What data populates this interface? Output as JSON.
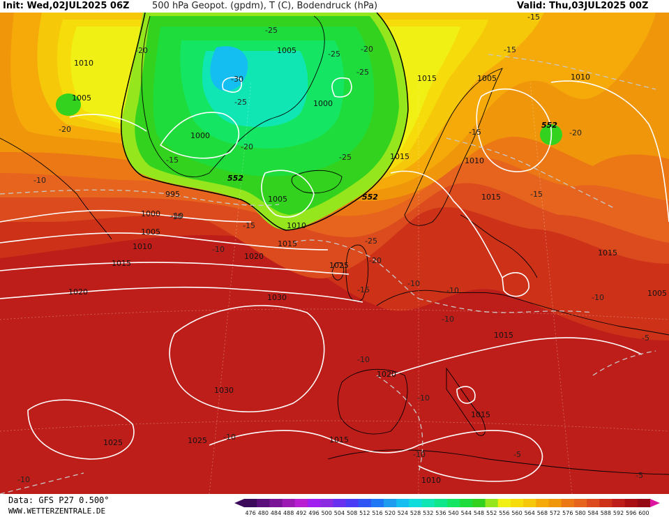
{
  "header": {
    "init": "Init: Wed,02JUL2025 06Z",
    "title": "500 hPa Geopot. (gpdm), T (C), Bodendruck (hPa)",
    "valid": "Valid: Thu,03JUL2025 00Z"
  },
  "footer": {
    "source": "Data: GFS P27 0.500°",
    "website": "WWW.WETTERZENTRALE.DE"
  },
  "legend": {
    "values": [
      "476",
      "480",
      "484",
      "488",
      "492",
      "496",
      "500",
      "504",
      "508",
      "512",
      "516",
      "520",
      "524",
      "528",
      "532",
      "536",
      "540",
      "544",
      "548",
      "552",
      "556",
      "560",
      "564",
      "568",
      "572",
      "576",
      "580",
      "584",
      "588",
      "592",
      "596",
      "600"
    ],
    "colors": [
      "#3c0a5a",
      "#5a0f7a",
      "#7a1496",
      "#9b1ab4",
      "#b91ed2",
      "#a020f0",
      "#8a2be2",
      "#6a30f0",
      "#4a3cf5",
      "#2f55f5",
      "#1e78f5",
      "#1e9cf0",
      "#14bef0",
      "#10dcdc",
      "#10e6b4",
      "#10e68c",
      "#14e664",
      "#1edc3c",
      "#32d21e",
      "#96e61e",
      "#f0f014",
      "#f5dc0a",
      "#f5c80a",
      "#f5aa0a",
      "#f0960a",
      "#eb7814",
      "#e6641e",
      "#dc4b1e",
      "#cd3219",
      "#be1e19",
      "#aa0f14",
      "#960a14"
    ]
  },
  "isobar_labels": [
    "1010",
    "1005",
    "1005",
    "1000",
    "1015",
    "1005",
    "1010",
    "1010",
    "1000",
    "995",
    "1000",
    "1005",
    "1005",
    "1010",
    "1015",
    "1015",
    "1020",
    "1010",
    "1015",
    "1015",
    "1025",
    "1030",
    "1020",
    "1020",
    "1015",
    "1030",
    "1025",
    "1025",
    "1015",
    "1015",
    "1010",
    "1015",
    "1005"
  ],
  "temp_labels": [
    "-25",
    "-20",
    "-25",
    "-20",
    "-25",
    "-30",
    "-25",
    "-20",
    "-15",
    "-10",
    "-25",
    "-15",
    "-10",
    "-10",
    "-15",
    "-15",
    "-20",
    "-15",
    "-25",
    "-20",
    "-15",
    "-10",
    "-10",
    "-10",
    "-10",
    "-10",
    "-10",
    "-10",
    "-5",
    "-5",
    "-10",
    "-10",
    "-5",
    "-10",
    "-15",
    "-20"
  ],
  "geopot_labels": [
    "552",
    "552",
    "552"
  ],
  "colors": {
    "isobar": "#ffffff",
    "isotherm": "#c8c8c8",
    "coast": "#000000"
  }
}
